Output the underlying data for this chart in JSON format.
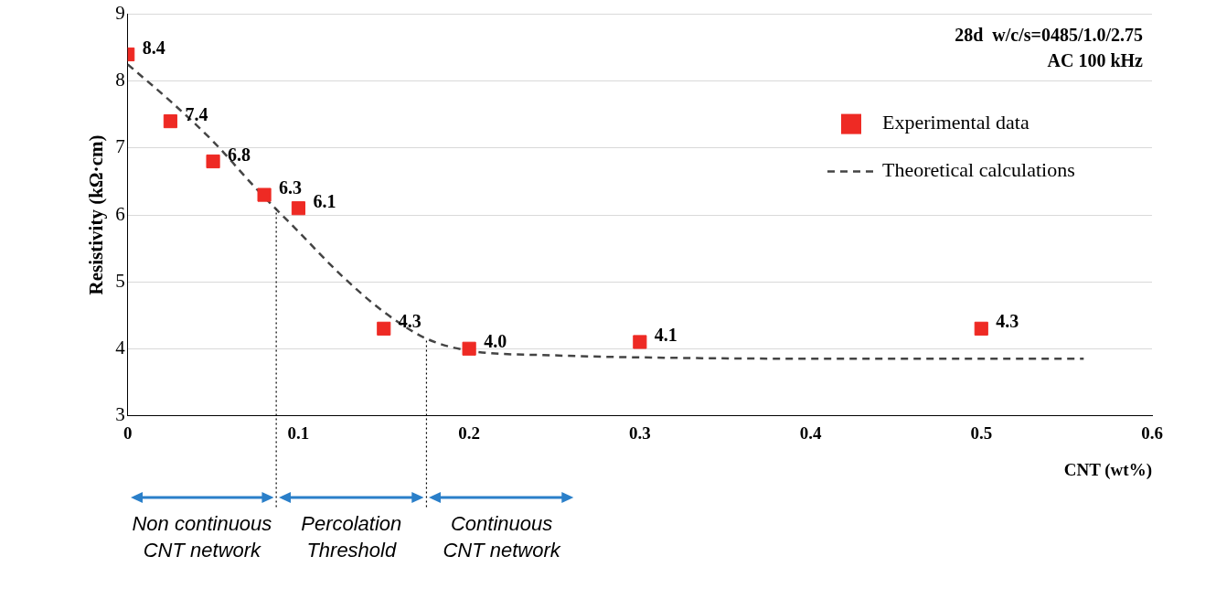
{
  "chart_data": {
    "type": "scatter",
    "xlabel": "CNT (wt%)",
    "ylabel": "Resistivity (kΩ·cm)",
    "xlim": [
      0,
      0.6
    ],
    "xticks": [
      0,
      0.1,
      0.2,
      0.3,
      0.4,
      0.5,
      0.6
    ],
    "ylim": [
      3,
      9
    ],
    "yticks": [
      3,
      4,
      5,
      6,
      7,
      8,
      9
    ],
    "grid": "y",
    "legend": "top right",
    "series": [
      {
        "name": "Experimental data",
        "type": "scatter",
        "marker": "square",
        "color": "#ee2a24",
        "x": [
          0,
          0.025,
          0.05,
          0.08,
          0.1,
          0.15,
          0.2,
          0.3,
          0.5
        ],
        "values": [
          8.4,
          7.4,
          6.8,
          6.3,
          6.1,
          4.3,
          4.0,
          4.1,
          4.3
        ],
        "value_labels": [
          "8.4",
          "7.4",
          "6.8",
          "6.3",
          "6.1",
          "4.3",
          "4.0",
          "4.1",
          "4.3"
        ]
      },
      {
        "name": "Theoretical calculations",
        "type": "line",
        "marker": "none",
        "line_style": "dashed",
        "color": "#444444",
        "x": [
          0,
          0.025,
          0.05,
          0.075,
          0.1,
          0.125,
          0.15,
          0.175,
          0.2,
          0.25,
          0.3,
          0.4,
          0.56
        ],
        "values": [
          8.25,
          7.7,
          7.1,
          6.4,
          5.75,
          5.1,
          4.55,
          4.15,
          3.97,
          3.9,
          3.87,
          3.85,
          3.85
        ]
      }
    ],
    "ref_lines": [
      {
        "axis": "x",
        "value": 0.087,
        "line_style": "dotted",
        "color": "#000000"
      },
      {
        "axis": "x",
        "value": 0.175,
        "line_style": "dotted",
        "color": "#000000"
      }
    ],
    "annotations": [
      "28d  w/c/s=0485/1.0/2.75",
      "AC 100 kHz",
      "Non continuous\nCNT network",
      "Percolation\nThreshold",
      "Continuous\nCNT network"
    ]
  }
}
